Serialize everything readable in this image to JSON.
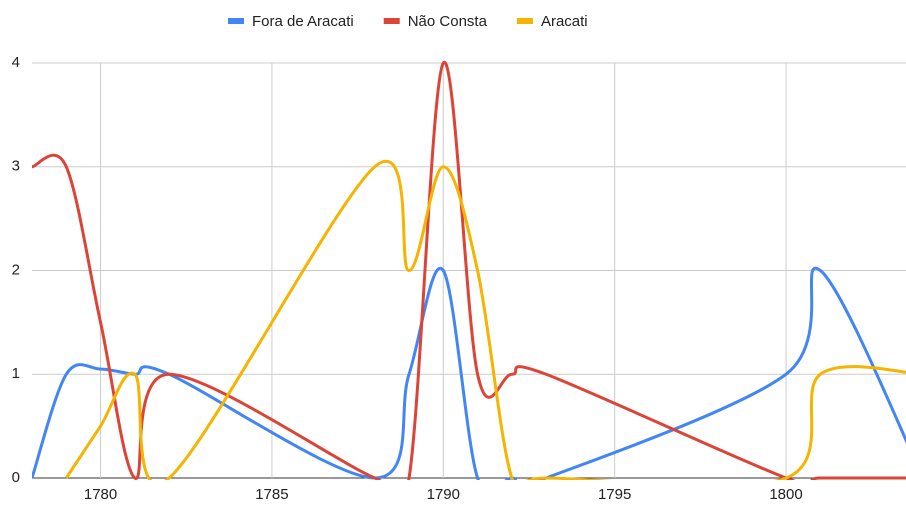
{
  "chart_data": {
    "type": "line",
    "x": [
      1778,
      1779,
      1780,
      1781,
      1782,
      1788,
      1789,
      1790,
      1791,
      1792,
      1793,
      1800,
      1801,
      1804
    ],
    "series": [
      {
        "name": "Fora de Aracati",
        "color": "#4285f4",
        "values": [
          0,
          1,
          1.05,
          1,
          1,
          0,
          1,
          2,
          0,
          0,
          0,
          1,
          2,
          0
        ]
      },
      {
        "name": "Não Consta",
        "color": "#db4437",
        "values": [
          3,
          3,
          1.5,
          0,
          1,
          0,
          0,
          4,
          1,
          1,
          1,
          0,
          0,
          0
        ]
      },
      {
        "name": "Aracati",
        "color": "#f4b400",
        "values": [
          null,
          0,
          0.5,
          1,
          0,
          3,
          2,
          3,
          2,
          0,
          0,
          0,
          1,
          1
        ]
      }
    ],
    "xlim": [
      1778,
      1803.5
    ],
    "xticks": [
      1780,
      1785,
      1790,
      1795,
      1800
    ],
    "ylim": [
      0,
      4
    ],
    "yticks": [
      0,
      1,
      2,
      3,
      4
    ],
    "grid": true,
    "legend": "top"
  }
}
